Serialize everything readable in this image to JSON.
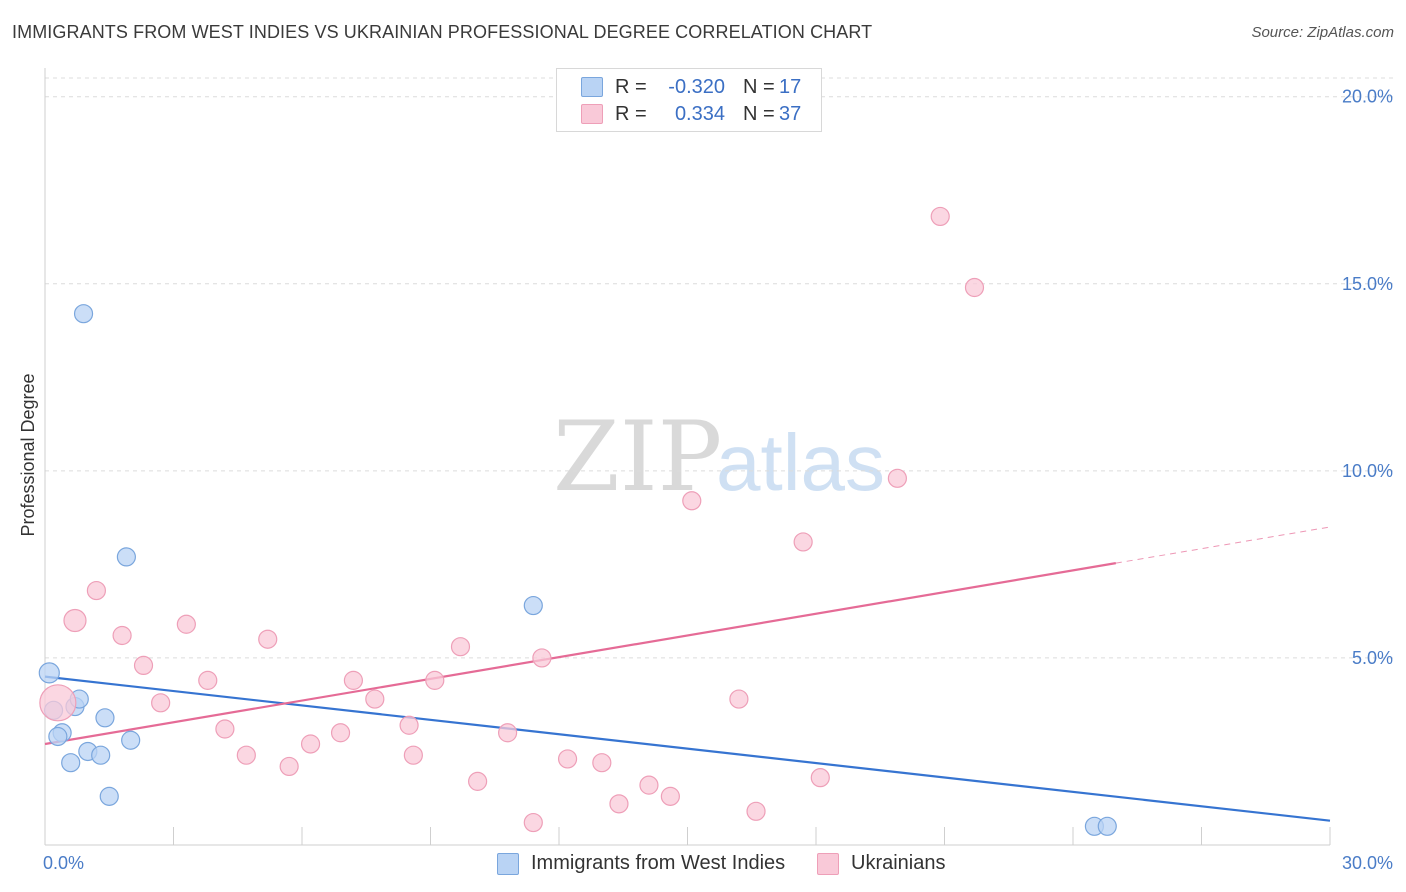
{
  "title": "IMMIGRANTS FROM WEST INDIES VS UKRAINIAN PROFESSIONAL DEGREE CORRELATION CHART",
  "source": "Source: ZipAtlas.com",
  "watermark": {
    "zip": "ZIP",
    "atlas": "atlas"
  },
  "colors": {
    "blue_fill": "#b9d3f4",
    "blue_stroke": "#7aa6dd",
    "blue_line": "#3674d1",
    "pink_fill": "#f9c9d8",
    "pink_stroke": "#ee9fb8",
    "pink_line": "#e56b96",
    "grid": "#dcdcdc",
    "tick_text": "#4a7cc7"
  },
  "legend": {
    "series1": {
      "r_label": "R =",
      "r_value": "-0.320",
      "n_label": "N =",
      "n_value": "17"
    },
    "series2": {
      "r_label": "R =",
      "r_value": "0.334",
      "n_label": "N =",
      "n_value": "37"
    }
  },
  "chart_data": {
    "type": "scatter",
    "title": "IMMIGRANTS FROM WEST INDIES VS UKRAINIAN PROFESSIONAL DEGREE CORRELATION CHART",
    "xlabel": "",
    "ylabel": "Professional Degree",
    "xlim": [
      0,
      30
    ],
    "ylim": [
      0,
      20.5
    ],
    "x_tick_labels": [
      "0.0%",
      "30.0%"
    ],
    "y_ticks": [
      5,
      10,
      15,
      20
    ],
    "y_tick_labels": [
      "5.0%",
      "10.0%",
      "15.0%",
      "20.0%"
    ],
    "series": [
      {
        "name": "Immigrants from West Indies",
        "color": "blue",
        "points": [
          [
            0.1,
            4.6,
            10
          ],
          [
            0.9,
            14.2,
            9
          ],
          [
            1.9,
            7.7,
            9
          ],
          [
            0.2,
            3.6,
            9
          ],
          [
            0.7,
            3.7,
            9
          ],
          [
            0.8,
            3.9,
            9
          ],
          [
            0.4,
            3.0,
            9
          ],
          [
            0.3,
            2.9,
            9
          ],
          [
            1.4,
            3.4,
            9
          ],
          [
            2.0,
            2.8,
            9
          ],
          [
            1.0,
            2.5,
            9
          ],
          [
            1.3,
            2.4,
            9
          ],
          [
            0.6,
            2.2,
            9
          ],
          [
            1.5,
            1.3,
            9
          ],
          [
            11.4,
            6.4,
            9
          ],
          [
            24.5,
            0.5,
            9
          ],
          [
            24.8,
            0.5,
            9
          ]
        ],
        "trend": {
          "x0": 0,
          "y0": 4.5,
          "x1": 30,
          "y1": 0.65,
          "dash_from": null
        }
      },
      {
        "name": "Ukrainians",
        "color": "pink",
        "points": [
          [
            0.3,
            3.8,
            18
          ],
          [
            0.7,
            6.0,
            11
          ],
          [
            1.2,
            6.8,
            9
          ],
          [
            1.8,
            5.6,
            9
          ],
          [
            2.3,
            4.8,
            9
          ],
          [
            3.3,
            5.9,
            9
          ],
          [
            2.7,
            3.8,
            9
          ],
          [
            3.8,
            4.4,
            9
          ],
          [
            4.2,
            3.1,
            9
          ],
          [
            4.7,
            2.4,
            9
          ],
          [
            5.2,
            5.5,
            9
          ],
          [
            5.7,
            2.1,
            9
          ],
          [
            6.2,
            2.7,
            9
          ],
          [
            6.9,
            3.0,
            9
          ],
          [
            7.2,
            4.4,
            9
          ],
          [
            7.7,
            3.9,
            9
          ],
          [
            8.5,
            3.2,
            9
          ],
          [
            8.6,
            2.4,
            9
          ],
          [
            9.1,
            4.4,
            9
          ],
          [
            9.7,
            5.3,
            9
          ],
          [
            10.1,
            1.7,
            9
          ],
          [
            10.8,
            3.0,
            9
          ],
          [
            11.4,
            0.6,
            9
          ],
          [
            11.6,
            5.0,
            9
          ],
          [
            12.2,
            2.3,
            9
          ],
          [
            13.0,
            2.2,
            9
          ],
          [
            13.4,
            1.1,
            9
          ],
          [
            14.1,
            1.6,
            9
          ],
          [
            14.6,
            1.3,
            9
          ],
          [
            15.1,
            9.2,
            9
          ],
          [
            16.2,
            3.9,
            9
          ],
          [
            16.6,
            0.9,
            9
          ],
          [
            17.7,
            8.1,
            9
          ],
          [
            18.1,
            1.8,
            9
          ],
          [
            19.9,
            9.8,
            9
          ],
          [
            20.9,
            16.8,
            9
          ],
          [
            21.7,
            14.9,
            9
          ]
        ],
        "trend": {
          "x0": 0,
          "y0": 2.7,
          "x1": 30,
          "y1": 8.5,
          "dash_from": 25
        }
      }
    ]
  },
  "bottom_legend": {
    "item1": "Immigrants from West Indies",
    "item2": "Ukrainians"
  }
}
